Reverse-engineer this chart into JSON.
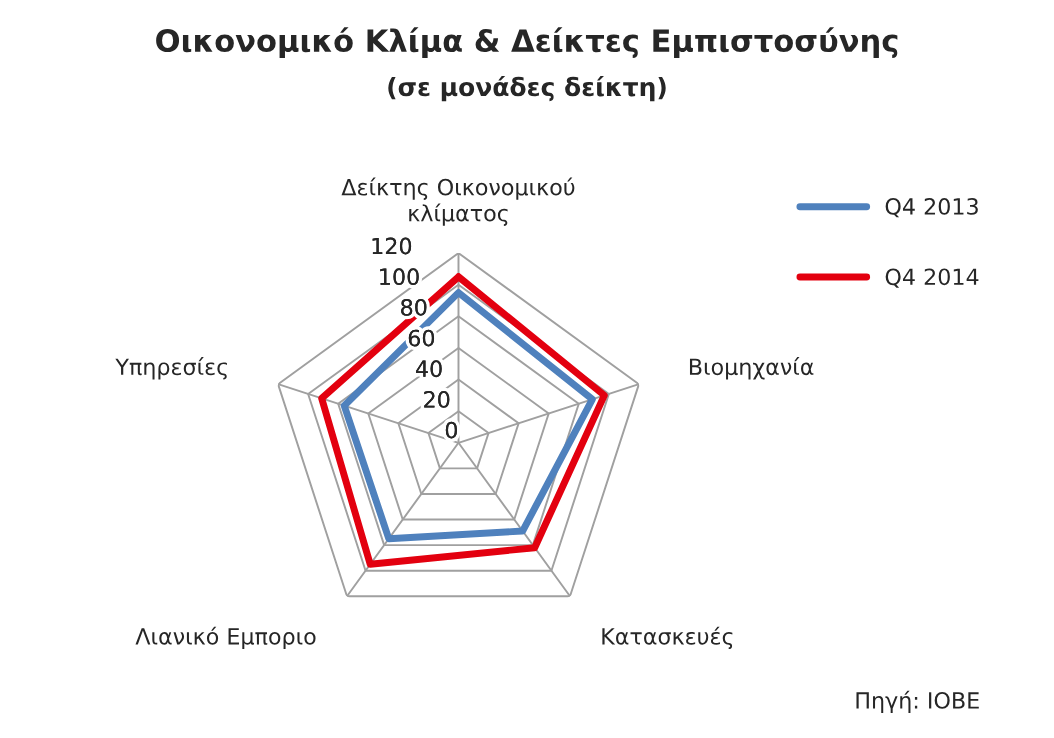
{
  "chart_data": {
    "type": "radar",
    "title": "Οικονομικό Κλίμα & Δείκτες Εμπιστοσύνης",
    "subtitle": "(σε μονάδες δείκτη)",
    "categories": [
      "Δείκτης Οικονομικού\nκλίματος",
      "Βιομηχανία",
      "Κατασκευές",
      "Λιανικό Εμποριο",
      "Υπηρεσίες"
    ],
    "series": [
      {
        "name": "Q4 2013",
        "color": "#4f81bd",
        "values": [
          95,
          89,
          69,
          75,
          76
        ]
      },
      {
        "name": "Q4 2014",
        "color": "#e3000f",
        "values": [
          105,
          97,
          82,
          95,
          91
        ]
      }
    ],
    "ylim": [
      0,
      120
    ],
    "yticks": [
      0,
      20,
      40,
      60,
      80,
      100,
      120
    ],
    "grid": true,
    "legend": "right",
    "marker": "none",
    "annotations": [
      "Πηγή: IOBE"
    ]
  }
}
